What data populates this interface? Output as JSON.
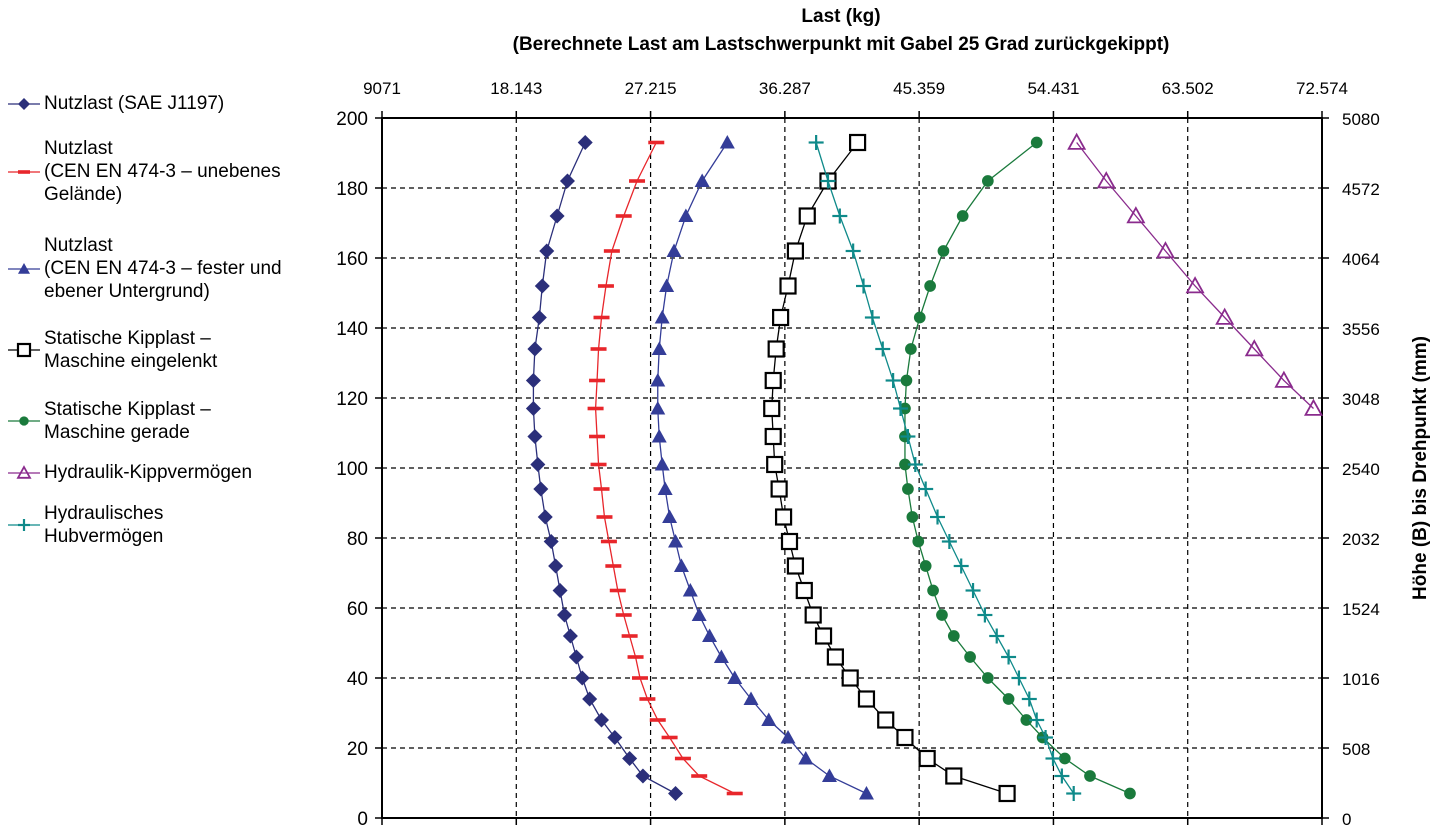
{
  "chart_data": {
    "type": "line",
    "title": "Last (kg)",
    "subtitle": "(Berechnete Last am Lastschwerpunkt mit Gabel 25 Grad zurückgekippt)",
    "xlabel": "Last (kg)",
    "ylabel_right": "Höhe (B) bis Drehpunkt (mm)",
    "ylabel": "",
    "xlim": [
      9071,
      72574
    ],
    "ylim": [
      0,
      200
    ],
    "x_ticks": [
      9071,
      18143,
      27215,
      36287,
      45359,
      54431,
      63502,
      72574
    ],
    "x_tick_labels": [
      "9071",
      "18.143",
      "27.215",
      "36.287",
      "45.359",
      "54.431",
      "63.502",
      "72.574"
    ],
    "y_ticks": [
      0,
      20,
      40,
      60,
      80,
      100,
      120,
      140,
      160,
      180,
      200
    ],
    "y_tick_labels": [
      "0",
      "20",
      "40",
      "60",
      "80",
      "100",
      "120",
      "140",
      "160",
      "180",
      "200"
    ],
    "y_right_tick_labels": [
      "0",
      "508",
      "1016",
      "1524",
      "2032",
      "2540",
      "3048",
      "3556",
      "4064",
      "4572",
      "5080"
    ],
    "grid": "dashed",
    "legend_position": "left",
    "series": [
      {
        "name": "Nutzlast (SAE J1197)",
        "color": "#2b2f7a",
        "marker": "diamond",
        "points": [
          [
            28900,
            7
          ],
          [
            26700,
            12
          ],
          [
            25800,
            17
          ],
          [
            24800,
            23
          ],
          [
            23900,
            28
          ],
          [
            23100,
            34
          ],
          [
            22600,
            40
          ],
          [
            22200,
            46
          ],
          [
            21800,
            52
          ],
          [
            21400,
            58
          ],
          [
            21100,
            65
          ],
          [
            20800,
            72
          ],
          [
            20500,
            79
          ],
          [
            20100,
            86
          ],
          [
            19800,
            94
          ],
          [
            19600,
            101
          ],
          [
            19400,
            109
          ],
          [
            19300,
            117
          ],
          [
            19300,
            125
          ],
          [
            19400,
            134
          ],
          [
            19700,
            143
          ],
          [
            19900,
            152
          ],
          [
            20200,
            162
          ],
          [
            20900,
            172
          ],
          [
            21600,
            182
          ],
          [
            22800,
            193
          ]
        ]
      },
      {
        "name": "Nutzlast\n(CEN EN 474-3 – unebenes Gelände)",
        "color": "#e8262b",
        "marker": "dash",
        "points": [
          [
            32900,
            7
          ],
          [
            30500,
            12
          ],
          [
            29400,
            17
          ],
          [
            28500,
            23
          ],
          [
            27700,
            28
          ],
          [
            27000,
            34
          ],
          [
            26500,
            40
          ],
          [
            26200,
            46
          ],
          [
            25800,
            52
          ],
          [
            25400,
            58
          ],
          [
            25000,
            65
          ],
          [
            24700,
            72
          ],
          [
            24400,
            79
          ],
          [
            24100,
            86
          ],
          [
            23900,
            94
          ],
          [
            23700,
            101
          ],
          [
            23600,
            109
          ],
          [
            23500,
            117
          ],
          [
            23600,
            125
          ],
          [
            23700,
            134
          ],
          [
            23900,
            143
          ],
          [
            24200,
            152
          ],
          [
            24600,
            162
          ],
          [
            25400,
            172
          ],
          [
            26300,
            182
          ],
          [
            27600,
            193
          ]
        ]
      },
      {
        "name": "Nutzlast\n(CEN EN 474-3 – fester und ebener Untergrund)",
        "color": "#343d98",
        "marker": "triangle",
        "points": [
          [
            41800,
            7
          ],
          [
            39300,
            12
          ],
          [
            37700,
            17
          ],
          [
            36500,
            23
          ],
          [
            35200,
            28
          ],
          [
            34000,
            34
          ],
          [
            32900,
            40
          ],
          [
            32000,
            46
          ],
          [
            31200,
            52
          ],
          [
            30500,
            58
          ],
          [
            29900,
            65
          ],
          [
            29300,
            72
          ],
          [
            28900,
            79
          ],
          [
            28500,
            86
          ],
          [
            28200,
            94
          ],
          [
            28000,
            101
          ],
          [
            27800,
            109
          ],
          [
            27700,
            117
          ],
          [
            27700,
            125
          ],
          [
            27800,
            134
          ],
          [
            28000,
            143
          ],
          [
            28300,
            152
          ],
          [
            28800,
            162
          ],
          [
            29600,
            172
          ],
          [
            30700,
            182
          ],
          [
            32400,
            193
          ]
        ]
      },
      {
        "name": "Statische Kipplast –\nMaschine eingelenkt",
        "color": "#000000",
        "marker": "square-open",
        "points": [
          [
            51300,
            7
          ],
          [
            47700,
            12
          ],
          [
            45900,
            17
          ],
          [
            44400,
            23
          ],
          [
            43100,
            28
          ],
          [
            41800,
            34
          ],
          [
            40700,
            40
          ],
          [
            39700,
            46
          ],
          [
            38900,
            52
          ],
          [
            38200,
            58
          ],
          [
            37600,
            65
          ],
          [
            37000,
            72
          ],
          [
            36600,
            79
          ],
          [
            36200,
            86
          ],
          [
            35900,
            94
          ],
          [
            35600,
            101
          ],
          [
            35500,
            109
          ],
          [
            35400,
            117
          ],
          [
            35500,
            125
          ],
          [
            35700,
            134
          ],
          [
            36000,
            143
          ],
          [
            36500,
            152
          ],
          [
            37000,
            162
          ],
          [
            37800,
            172
          ],
          [
            39200,
            182
          ],
          [
            41200,
            193
          ]
        ]
      },
      {
        "name": "Statische Kipplast –\nMaschine gerade",
        "color": "#1a7a3c",
        "marker": "circle",
        "points": [
          [
            59600,
            7
          ],
          [
            56900,
            12
          ],
          [
            55200,
            17
          ],
          [
            53700,
            23
          ],
          [
            52600,
            28
          ],
          [
            51400,
            34
          ],
          [
            50000,
            40
          ],
          [
            48800,
            46
          ],
          [
            47700,
            52
          ],
          [
            46900,
            58
          ],
          [
            46300,
            65
          ],
          [
            45800,
            72
          ],
          [
            45300,
            79
          ],
          [
            44900,
            86
          ],
          [
            44600,
            94
          ],
          [
            44400,
            101
          ],
          [
            44400,
            109
          ],
          [
            44400,
            117
          ],
          [
            44500,
            125
          ],
          [
            44800,
            134
          ],
          [
            45400,
            143
          ],
          [
            46100,
            152
          ],
          [
            47000,
            162
          ],
          [
            48300,
            172
          ],
          [
            50000,
            182
          ],
          [
            53300,
            193
          ]
        ]
      },
      {
        "name": "Hydraulik-Kippvermögen",
        "color": "#8a2b8d",
        "marker": "triangle-open",
        "points": [
          [
            72000,
            117
          ],
          [
            70000,
            125
          ],
          [
            68000,
            134
          ],
          [
            66000,
            143
          ],
          [
            64000,
            152
          ],
          [
            62000,
            162
          ],
          [
            60000,
            172
          ],
          [
            58000,
            182
          ],
          [
            56000,
            193
          ]
        ]
      },
      {
        "name": "Hydraulisches\nHubvermögen",
        "color": "#0f8a8a",
        "marker": "plus",
        "points": [
          [
            55800,
            7
          ],
          [
            55000,
            12
          ],
          [
            54400,
            17
          ],
          [
            53900,
            23
          ],
          [
            53300,
            28
          ],
          [
            52800,
            34
          ],
          [
            52100,
            40
          ],
          [
            51400,
            46
          ],
          [
            50600,
            52
          ],
          [
            49800,
            58
          ],
          [
            49000,
            65
          ],
          [
            48200,
            72
          ],
          [
            47400,
            79
          ],
          [
            46600,
            86
          ],
          [
            45800,
            94
          ],
          [
            45100,
            101
          ],
          [
            44600,
            109
          ],
          [
            44100,
            117
          ],
          [
            43600,
            125
          ],
          [
            42900,
            134
          ],
          [
            42200,
            143
          ],
          [
            41600,
            152
          ],
          [
            40900,
            162
          ],
          [
            40000,
            172
          ],
          [
            39200,
            182
          ],
          [
            38400,
            193
          ]
        ]
      }
    ]
  }
}
